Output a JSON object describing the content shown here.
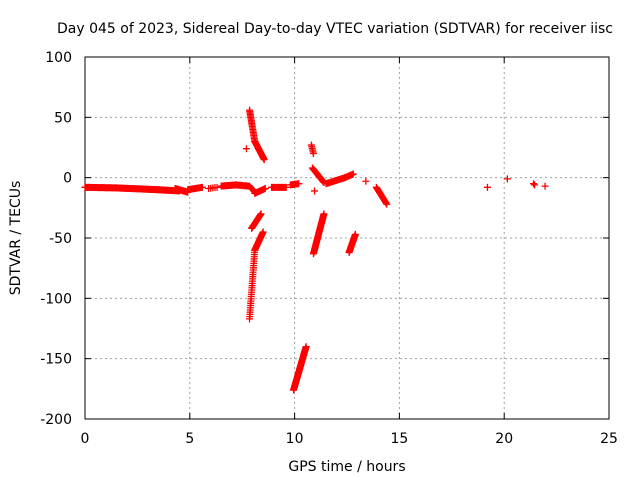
{
  "chart_data": {
    "type": "scatter",
    "title": "Day 045 of 2023, Sidereal Day-to-day VTEC variation (SDTVAR) for receiver iisc",
    "xlabel": "GPS time / hours",
    "ylabel": "SDTVAR / TECUs",
    "xlim": [
      0,
      25
    ],
    "ylim": [
      -200,
      100
    ],
    "x_ticks": [
      0,
      5,
      10,
      15,
      20,
      25
    ],
    "y_ticks": [
      -200,
      -150,
      -100,
      -50,
      0,
      50,
      100
    ],
    "grid": true,
    "marker": "plus",
    "color": "#ff0000",
    "segments": [
      {
        "name": "baseline",
        "start": [
          0.0,
          -8
        ],
        "end": [
          1.5,
          -8.5
        ],
        "step": 0.04
      },
      {
        "name": "baseline",
        "start": [
          1.5,
          -8.5
        ],
        "end": [
          3.5,
          -10
        ],
        "step": 0.04
      },
      {
        "name": "baseline",
        "start": [
          3.5,
          -10
        ],
        "end": [
          4.5,
          -11
        ],
        "step": 0.04
      },
      {
        "name": "baseline",
        "start": [
          4.3,
          -9
        ],
        "end": [
          4.9,
          -12
        ],
        "step": 0.03
      },
      {
        "name": "baseline",
        "start": [
          4.9,
          -10
        ],
        "end": [
          5.6,
          -8
        ],
        "step": 0.05
      },
      {
        "name": "baseline",
        "start": [
          5.9,
          -9
        ],
        "end": [
          6.3,
          -8
        ],
        "step": 0.1
      },
      {
        "name": "baseline",
        "start": [
          6.5,
          -7
        ],
        "end": [
          7.2,
          -6
        ],
        "step": 0.04
      },
      {
        "name": "baseline",
        "start": [
          7.2,
          -6
        ],
        "end": [
          7.8,
          -7
        ],
        "step": 0.05
      },
      {
        "name": "baseline",
        "start": [
          7.85,
          -7
        ],
        "end": [
          8.1,
          -12
        ],
        "step": 0.05
      },
      {
        "name": "baseline",
        "start": [
          8.1,
          -13
        ],
        "end": [
          8.6,
          -9
        ],
        "step": 0.05
      },
      {
        "name": "baseline",
        "start": [
          8.9,
          -8
        ],
        "end": [
          9.6,
          -8
        ],
        "step": 0.05
      },
      {
        "name": "baseline",
        "start": [
          9.8,
          -6
        ],
        "end": [
          10.2,
          -5
        ],
        "step": 0.05
      },
      {
        "name": "baseline",
        "start": [
          11.5,
          -5
        ],
        "end": [
          12.4,
          0
        ],
        "step": 0.05
      },
      {
        "name": "baseline",
        "start": [
          12.4,
          0
        ],
        "end": [
          12.8,
          3
        ],
        "step": 0.05
      },
      {
        "name": "spike-up",
        "start": [
          7.85,
          56
        ],
        "end": [
          8.1,
          30
        ],
        "step": 0.012
      },
      {
        "name": "spike-up",
        "start": [
          8.1,
          30
        ],
        "end": [
          8.55,
          15
        ],
        "step": 0.02
      },
      {
        "name": "spike-down",
        "start": [
          7.85,
          -117
        ],
        "end": [
          8.1,
          -60
        ],
        "step": 0.008
      },
      {
        "name": "spike-down",
        "start": [
          8.1,
          -60
        ],
        "end": [
          8.5,
          -45
        ],
        "step": 0.02
      },
      {
        "name": "spike-down",
        "start": [
          7.95,
          -42
        ],
        "end": [
          8.4,
          -30
        ],
        "step": 0.025
      },
      {
        "name": "spike-down",
        "start": [
          9.95,
          -176
        ],
        "end": [
          10.55,
          -140
        ],
        "step": 0.012
      },
      {
        "name": "spike-up",
        "start": [
          10.8,
          27
        ],
        "end": [
          10.9,
          20
        ],
        "step": 0.02
      },
      {
        "name": "arc",
        "start": [
          10.85,
          8
        ],
        "end": [
          11.4,
          -4
        ],
        "step": 0.03
      },
      {
        "name": "spike-down",
        "start": [
          10.9,
          -63
        ],
        "end": [
          11.4,
          -30
        ],
        "step": 0.012
      },
      {
        "name": "spike-down",
        "start": [
          12.6,
          -62
        ],
        "end": [
          12.9,
          -47
        ],
        "step": 0.015
      },
      {
        "name": "arc",
        "start": [
          13.9,
          -8
        ],
        "end": [
          14.4,
          -22
        ],
        "step": 0.03
      }
    ],
    "points": [
      {
        "x": 7.7,
        "y": 24
      },
      {
        "x": 10.95,
        "y": -11
      },
      {
        "x": 13.4,
        "y": -3
      },
      {
        "x": 19.2,
        "y": -8
      },
      {
        "x": 20.15,
        "y": -1
      },
      {
        "x": 21.4,
        "y": -5
      },
      {
        "x": 21.45,
        "y": -6
      },
      {
        "x": 21.95,
        "y": -7
      }
    ]
  }
}
